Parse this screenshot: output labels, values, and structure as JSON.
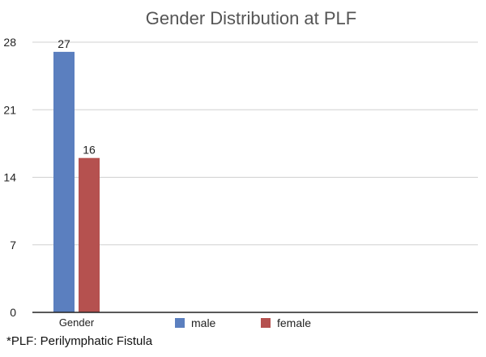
{
  "chart_data": {
    "type": "bar",
    "title": "Gender Distribution at PLF",
    "categories": [
      "Gender"
    ],
    "series": [
      {
        "name": "male",
        "values": [
          27
        ],
        "color": "#5b7fbf"
      },
      {
        "name": "female",
        "values": [
          16
        ],
        "color": "#b5514f"
      }
    ],
    "ylim": [
      0,
      28
    ],
    "yticks": [
      0,
      7,
      14,
      21,
      28
    ],
    "grid": true,
    "legend_position": "bottom",
    "data_labels": true
  },
  "footnote": "*PLF: Perilymphatic Fistula"
}
